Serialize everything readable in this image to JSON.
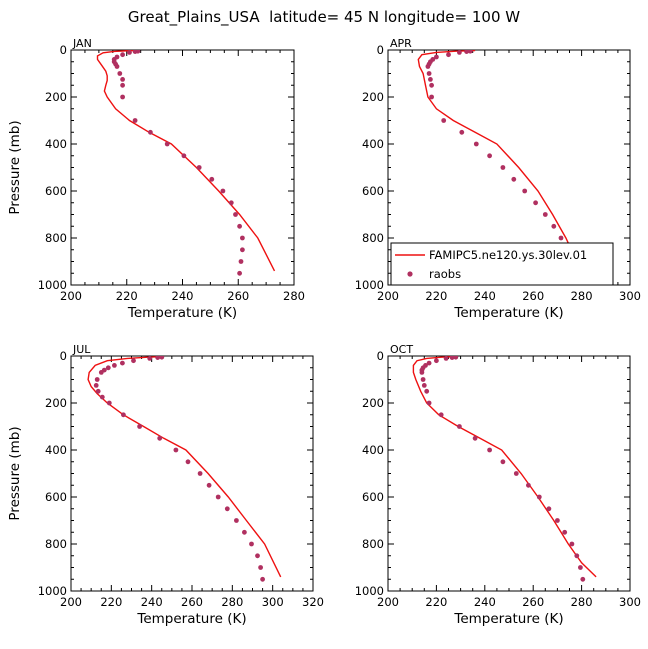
{
  "figure": {
    "title": "Great_Plains_USA  latitude= 45 N longitude= 100 W"
  },
  "legend": {
    "model_label": "FAMIPC5.ne120.ys.30lev.01",
    "obs_label": "raobs"
  },
  "colors": {
    "model_line": "#ee1111",
    "obs_points": "#b03060"
  },
  "chart_data": [
    {
      "type": "line",
      "panel": "JAN",
      "xlabel": "Temperature (K)",
      "ylabel": "Pressure (mb)",
      "xlim": [
        200,
        280
      ],
      "ylim": [
        1000,
        0
      ],
      "y_inverted": true,
      "xticks": [
        200,
        220,
        240,
        260,
        280
      ],
      "yticks": [
        0,
        200,
        400,
        600,
        800,
        1000
      ],
      "legend": false,
      "series": [
        {
          "name": "FAMIPC5.ne120.ys.30lev.01",
          "kind": "line",
          "x": [
            222.5,
            215.5,
            211.5,
            209.5,
            209.5,
            211.0,
            212.5,
            213.0,
            213.0,
            212.5,
            212.0,
            213.0,
            216.0,
            221.0,
            228.0,
            236.0,
            245.0,
            253.0,
            260.5,
            267.0,
            273.0
          ],
          "y": [
            2,
            6,
            12,
            25,
            40,
            65,
            90,
            110,
            130,
            150,
            175,
            200,
            250,
            300,
            350,
            400,
            500,
            600,
            700,
            800,
            940
          ]
        },
        {
          "name": "raobs",
          "kind": "points",
          "x": [
            224.0,
            223.0,
            221.0,
            218.5,
            216.5,
            215.5,
            215.5,
            216.0,
            216.5,
            217.5,
            218.5,
            218.5,
            218.5,
            223.0,
            228.5,
            234.5,
            240.5,
            246.0,
            250.5,
            254.5,
            257.5,
            259.0,
            260.5,
            261.5,
            261.5,
            261.0,
            260.5
          ],
          "y": [
            5,
            7,
            10,
            20,
            30,
            40,
            50,
            60,
            70,
            100,
            125,
            150,
            200,
            300,
            350,
            400,
            450,
            500,
            550,
            600,
            650,
            700,
            750,
            800,
            850,
            900,
            950
          ]
        }
      ]
    },
    {
      "type": "line",
      "panel": "APR",
      "xlabel": "Temperature (K)",
      "ylabel": "",
      "xlim": [
        200,
        300
      ],
      "ylim": [
        1000,
        0
      ],
      "y_inverted": true,
      "xticks": [
        200,
        220,
        240,
        260,
        280,
        300
      ],
      "yticks": [
        0,
        200,
        400,
        600,
        800,
        1000
      ],
      "legend": true,
      "legend_position": "bottom-right",
      "series": [
        {
          "name": "FAMIPC5.ne120.ys.30lev.01",
          "kind": "line",
          "x": [
            236.0,
            228.0,
            220.0,
            214.0,
            212.5,
            213.0,
            214.5,
            215.5,
            216.5,
            220.0,
            227.0,
            236.0,
            245.0,
            254.0,
            262.0,
            268.0,
            273.5,
            278.0,
            280.5
          ],
          "y": [
            2,
            5,
            10,
            20,
            40,
            70,
            100,
            150,
            200,
            250,
            300,
            350,
            400,
            500,
            600,
            700,
            800,
            900,
            950
          ]
        },
        {
          "name": "raobs",
          "kind": "points",
          "x": [
            234.0,
            232.5,
            229.5,
            225.0,
            220.0,
            218.5,
            217.5,
            217.0,
            216.5,
            217.0,
            217.5,
            218.0,
            218.0,
            223.0,
            230.5,
            236.5,
            242.0,
            247.5,
            252.0,
            256.5,
            261.0,
            265.0,
            268.5,
            271.5,
            274.5,
            276.5,
            278.5,
            279.5
          ],
          "y": [
            5,
            7,
            10,
            20,
            30,
            40,
            50,
            60,
            70,
            100,
            125,
            150,
            200,
            300,
            350,
            400,
            450,
            500,
            550,
            600,
            650,
            700,
            750,
            800,
            850,
            900,
            925,
            950
          ]
        }
      ]
    },
    {
      "type": "line",
      "panel": "JUL",
      "xlabel": "Temperature (K)",
      "ylabel": "Pressure (mb)",
      "xlim": [
        200,
        320
      ],
      "ylim": [
        1000,
        0
      ],
      "y_inverted": true,
      "xticks": [
        200,
        220,
        240,
        260,
        280,
        300,
        320
      ],
      "yticks": [
        0,
        200,
        400,
        600,
        800,
        1000
      ],
      "legend": false,
      "series": [
        {
          "name": "FAMIPC5.ne120.ys.30lev.01",
          "kind": "line",
          "x": [
            246.0,
            238.0,
            228.0,
            218.0,
            212.0,
            209.0,
            208.5,
            210.0,
            213.0,
            218.0,
            226.0,
            236.0,
            246.0,
            257.0,
            268.0,
            278.0,
            287.0,
            296.0,
            304.0
          ],
          "y": [
            2,
            5,
            10,
            20,
            40,
            70,
            100,
            130,
            160,
            200,
            250,
            300,
            350,
            400,
            500,
            600,
            700,
            800,
            940
          ]
        },
        {
          "name": "raobs",
          "kind": "points",
          "x": [
            245.0,
            243.0,
            239.0,
            231.0,
            225.5,
            221.5,
            218.5,
            216.5,
            215.0,
            213.0,
            212.5,
            213.5,
            215.5,
            219.0,
            226.0,
            234.0,
            244.0,
            252.0,
            258.0,
            264.0,
            268.5,
            273.0,
            277.5,
            282.0,
            286.0,
            289.5,
            292.5,
            294.0,
            295.0
          ],
          "y": [
            5,
            7,
            10,
            20,
            30,
            40,
            50,
            60,
            70,
            100,
            125,
            150,
            175,
            200,
            250,
            300,
            350,
            400,
            450,
            500,
            550,
            600,
            650,
            700,
            750,
            800,
            850,
            900,
            950
          ]
        }
      ]
    },
    {
      "type": "line",
      "panel": "OCT",
      "xlabel": "Temperature (K)",
      "ylabel": "",
      "xlim": [
        200,
        300
      ],
      "ylim": [
        1000,
        0
      ],
      "y_inverted": true,
      "xticks": [
        200,
        220,
        240,
        260,
        280,
        300
      ],
      "yticks": [
        0,
        200,
        400,
        600,
        800,
        1000
      ],
      "legend": false,
      "series": [
        {
          "name": "FAMIPC5.ne120.ys.30lev.01",
          "kind": "line",
          "x": [
            228.0,
            222.0,
            216.0,
            212.0,
            210.5,
            210.5,
            211.5,
            213.5,
            216.0,
            221.0,
            229.0,
            238.0,
            247.0,
            255.0,
            262.0,
            268.5,
            274.5,
            280.0,
            286.0
          ],
          "y": [
            2,
            5,
            10,
            20,
            40,
            70,
            100,
            150,
            200,
            250,
            300,
            350,
            400,
            500,
            600,
            700,
            800,
            880,
            940
          ]
        },
        {
          "name": "raobs",
          "kind": "points",
          "x": [
            228.0,
            226.5,
            224.0,
            220.0,
            217.0,
            215.5,
            214.5,
            214.0,
            214.0,
            214.5,
            215.0,
            216.0,
            217.0,
            222.0,
            229.5,
            236.0,
            242.0,
            247.5,
            253.0,
            258.0,
            262.5,
            266.5,
            270.0,
            273.0,
            276.0,
            278.0,
            279.5,
            280.5
          ],
          "y": [
            5,
            7,
            10,
            20,
            30,
            40,
            50,
            60,
            70,
            100,
            125,
            150,
            200,
            250,
            300,
            350,
            400,
            450,
            500,
            550,
            600,
            650,
            700,
            750,
            800,
            850,
            900,
            950
          ]
        }
      ]
    }
  ]
}
